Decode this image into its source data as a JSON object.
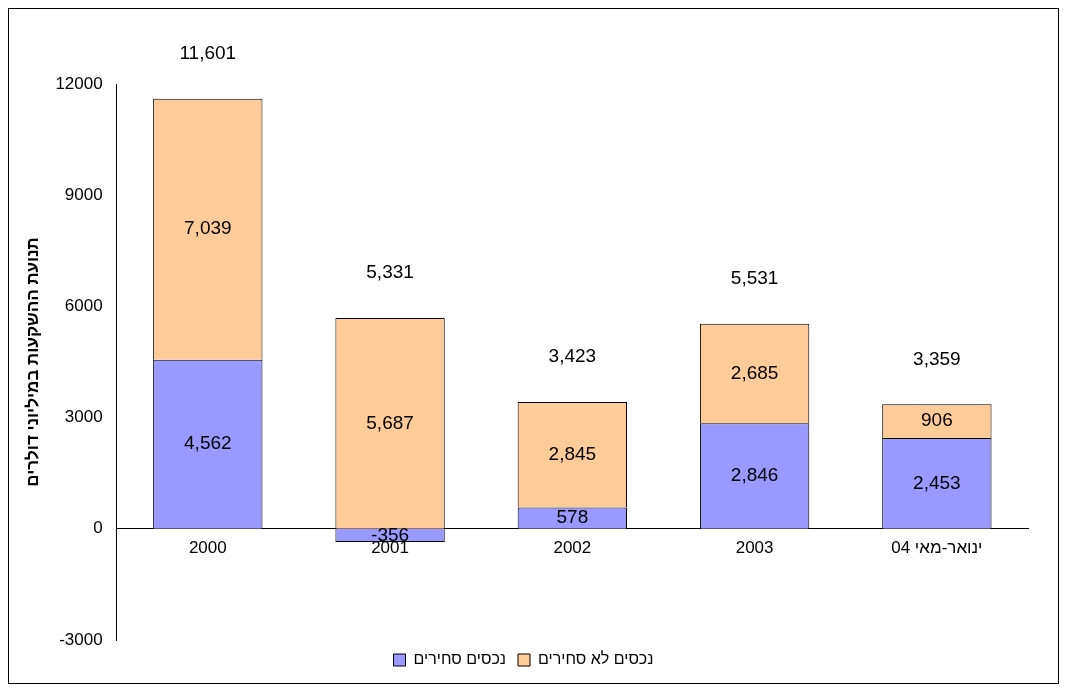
{
  "chart_data": {
    "type": "bar",
    "stacked": true,
    "ylabel": "תנועת ההשקעות במיליוני דולרים",
    "categories": [
      "2000",
      "2001",
      "2002",
      "2003",
      "ינואר-מאי 04"
    ],
    "series": [
      {
        "name": "נכסים סחירים",
        "color": "#9999ff",
        "values": [
          4562,
          -356,
          578,
          2846,
          2453
        ],
        "value_labels": [
          "4,562",
          "-356",
          "578",
          "2,846",
          "2,453"
        ]
      },
      {
        "name": "נכסים לא סחירים",
        "color": "#ffcc99",
        "values": [
          7039,
          5687,
          2845,
          2685,
          906
        ],
        "value_labels": [
          "7,039",
          "5,687",
          "2,845",
          "2,685",
          "906"
        ]
      }
    ],
    "totals": [
      "11,601",
      "5,331",
      "3,423",
      "5,531",
      "3,359"
    ],
    "ylim": [
      -3000,
      12000
    ],
    "yticks": [
      -3000,
      0,
      3000,
      6000,
      9000,
      12000
    ],
    "grid": false,
    "legend": "bottom"
  }
}
